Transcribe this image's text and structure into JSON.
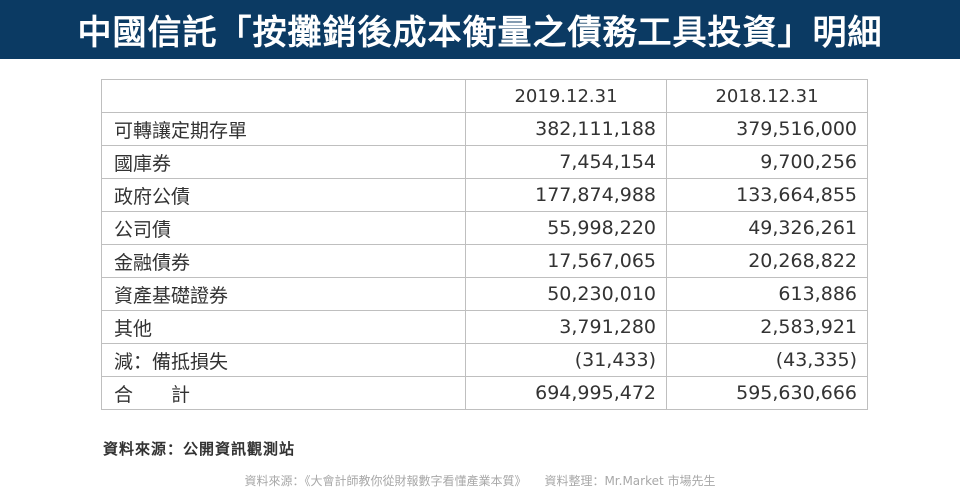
{
  "banner": {
    "title": "中國信託「按攤銷後成本衡量之債務工具投資」明細"
  },
  "table": {
    "headers": [
      "",
      "2019.12.31",
      "2018.12.31"
    ],
    "rows": [
      {
        "label": "可轉讓定期存單",
        "v2019": "382,111,188",
        "v2018": "379,516,000"
      },
      {
        "label": "國庫券",
        "v2019": "7,454,154",
        "v2018": "9,700,256"
      },
      {
        "label": "政府公債",
        "v2019": "177,874,988",
        "v2018": "133,664,855"
      },
      {
        "label": "公司債",
        "v2019": "55,998,220",
        "v2018": "49,326,261"
      },
      {
        "label": "金融債券",
        "v2019": "17,567,065",
        "v2018": "20,268,822"
      },
      {
        "label": "資產基礎證券",
        "v2019": "50,230,010",
        "v2018": "613,886"
      },
      {
        "label": "其他",
        "v2019": "3,791,280",
        "v2018": "2,583,921"
      },
      {
        "label": "減：備抵損失",
        "v2019": "(31,433)",
        "v2018": "(43,335)"
      },
      {
        "label": "合　　計",
        "v2019": "694,995,472",
        "v2018": "595,630,666"
      }
    ]
  },
  "source_note": "資料來源：公開資訊觀測站",
  "footer_credit": "資料來源：《大會計師教你從財報數字看懂產業本質》　　資料整理：Mr.Market 市場先生"
}
